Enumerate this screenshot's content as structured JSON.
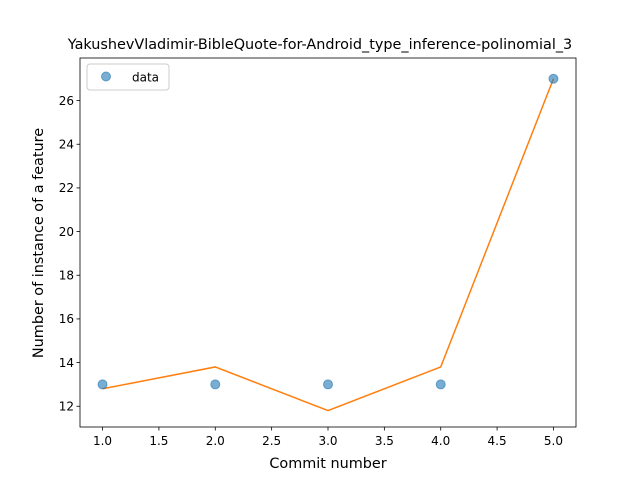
{
  "chart_data": {
    "type": "scatter",
    "title": "YakushevVladimir-BibleQuote-for-Android_type_inference-polinomial_3",
    "xlabel": "Commit number",
    "ylabel": "Number of instance of a feature",
    "xlim": [
      0.8,
      5.2
    ],
    "ylim": [
      11.05,
      27.95
    ],
    "xticks": [
      1.0,
      1.5,
      2.0,
      2.5,
      3.0,
      3.5,
      4.0,
      4.5,
      5.0
    ],
    "xtick_labels": [
      "1.0",
      "1.5",
      "2.0",
      "2.5",
      "3.0",
      "3.5",
      "4.0",
      "4.5",
      "5.0"
    ],
    "yticks": [
      12,
      14,
      16,
      18,
      20,
      22,
      24,
      26
    ],
    "ytick_labels": [
      "12",
      "14",
      "16",
      "18",
      "20",
      "22",
      "24",
      "26"
    ],
    "grid": false,
    "legend_position": "top-left",
    "series": [
      {
        "name": "data",
        "kind": "scatter",
        "color": "#1f77b4",
        "x": [
          1,
          2,
          3,
          4,
          5
        ],
        "y": [
          13,
          13,
          13,
          13,
          27
        ]
      },
      {
        "kind": "line",
        "color": "#ff7f0e",
        "x": [
          1,
          2,
          3,
          4,
          5
        ],
        "y": [
          12.8,
          13.8,
          11.8,
          13.8,
          27.0
        ]
      }
    ]
  }
}
